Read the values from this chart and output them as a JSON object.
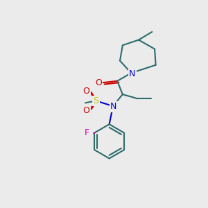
{
  "bg_color": "#ebebeb",
  "bond_color": "#2d6b6b",
  "bond_lw": 1.5,
  "atom_colors": {
    "N": "#0000cc",
    "O": "#cc0000",
    "S": "#cccc00",
    "F": "#cc00aa",
    "C": "#000000"
  },
  "font_size": 9,
  "font_size_small": 8
}
